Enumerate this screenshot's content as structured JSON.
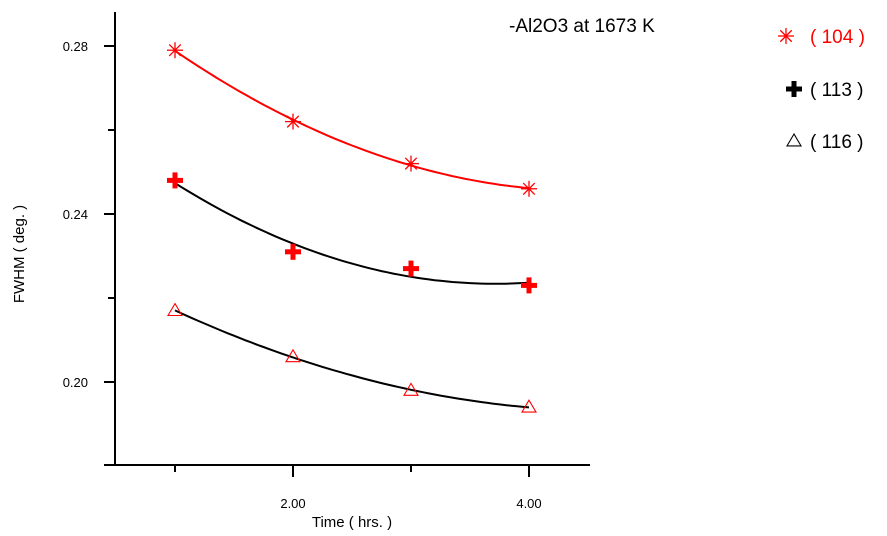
{
  "chart_data": {
    "type": "scatter",
    "title": "-Al2O3 at 1673 K",
    "xlabel": "Time ( hrs. )",
    "ylabel": "FWHM ( deg. )",
    "xlim": [
      0.5,
      4.5
    ],
    "ylim": [
      0.18,
      0.288
    ],
    "x_ticks": [
      1,
      2,
      3,
      4
    ],
    "x_tick_labels": [
      "",
      "2.00",
      "",
      "4.00"
    ],
    "y_ticks": [
      0.2,
      0.22,
      0.24,
      0.26,
      0.28
    ],
    "y_tick_labels": [
      "0.20",
      "",
      "0.24",
      "",
      "0.28"
    ],
    "grid": false,
    "legend_position": "right",
    "series": [
      {
        "name": "( 104 )",
        "marker": "asterisk",
        "marker_color": "#ff0000",
        "line_color": "#ff0000",
        "label_color": "#ff0000",
        "x": [
          1,
          2,
          3,
          4
        ],
        "y": [
          0.279,
          0.262,
          0.252,
          0.246
        ]
      },
      {
        "name": "( 113 )",
        "marker": "plus",
        "marker_color": "#ff0000",
        "line_color": "#000000",
        "label_color": "#000000",
        "x": [
          1,
          2,
          3,
          4
        ],
        "y": [
          0.248,
          0.231,
          0.227,
          0.223
        ]
      },
      {
        "name": "( 116 )",
        "marker": "triangle",
        "marker_color": "#ff0000",
        "line_color": "#000000",
        "label_color": "#000000",
        "x": [
          1,
          2,
          3,
          4
        ],
        "y": [
          0.217,
          0.206,
          0.198,
          0.194
        ]
      }
    ]
  }
}
